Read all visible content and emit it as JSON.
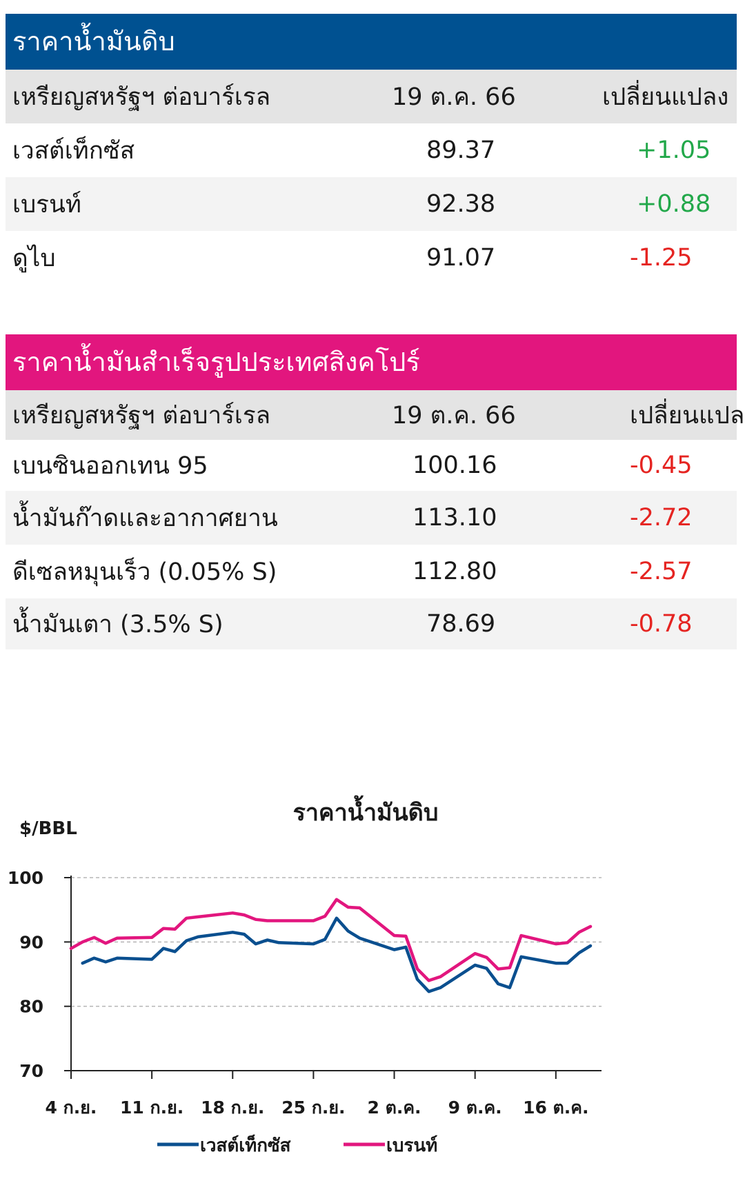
{
  "crude_table": {
    "title": "ราคาน้ำมันดิบ",
    "header_color": "#005191",
    "col_name": "เหรียญสหรัฐฯ ต่อบาร์เรล",
    "col_date": "19 ต.ค. 66",
    "col_change": "เปลี่ยนแปลง",
    "rows": [
      {
        "name": "เวสต์เท็กซัส",
        "value": "89.37",
        "change": "+1.05",
        "dir": "pos"
      },
      {
        "name": "เบรนท์",
        "value": "92.38",
        "change": "+0.88",
        "dir": "pos"
      },
      {
        "name": "ดูไบ",
        "value": "91.07",
        "change": "-1.25",
        "dir": "neg"
      }
    ]
  },
  "refined_table": {
    "title": "ราคาน้ำมันสำเร็จรูปประเทศสิงคโปร์",
    "header_color": "#e2167e",
    "col_name": "เหรียญสหรัฐฯ ต่อบาร์เรล",
    "col_date": "19 ต.ค. 66",
    "col_change": "เปลี่ยนแปลง",
    "rows": [
      {
        "name": "เบนซินออกเทน 95",
        "value": "100.16",
        "change": "-0.45",
        "dir": "neg"
      },
      {
        "name": "น้ำมันก๊าดและอากาศยาน",
        "value": "113.10",
        "change": "-2.72",
        "dir": "neg"
      },
      {
        "name": "ดีเซลหมุนเร็ว (0.05% S)",
        "value": "112.80",
        "change": "-2.57",
        "dir": "neg"
      },
      {
        "name": "น้ำมันเตา (3.5% S)",
        "value": "78.69",
        "change": "-0.78",
        "dir": "neg"
      }
    ]
  },
  "chart_data": {
    "type": "line",
    "title": "ราคาน้ำมันดิบ",
    "ylabel": "$/BBL",
    "ylim": [
      70,
      100
    ],
    "yticks": [
      70,
      80,
      90,
      100
    ],
    "grid": true,
    "legend_position": "bottom",
    "x_tick_labels": [
      "4 ก.ย.",
      "11 ก.ย.",
      "18 ก.ย.",
      "25 ก.ย.",
      "2 ต.ค.",
      "9 ต.ค.",
      "16 ต.ค."
    ],
    "x": [
      "2023-09-04",
      "2023-09-05",
      "2023-09-06",
      "2023-09-07",
      "2023-09-08",
      "2023-09-11",
      "2023-09-12",
      "2023-09-13",
      "2023-09-14",
      "2023-09-15",
      "2023-09-18",
      "2023-09-19",
      "2023-09-20",
      "2023-09-21",
      "2023-09-22",
      "2023-09-25",
      "2023-09-26",
      "2023-09-27",
      "2023-09-28",
      "2023-09-29",
      "2023-10-02",
      "2023-10-03",
      "2023-10-04",
      "2023-10-05",
      "2023-10-06",
      "2023-10-09",
      "2023-10-10",
      "2023-10-11",
      "2023-10-12",
      "2023-10-13",
      "2023-10-16",
      "2023-10-17",
      "2023-10-18",
      "2023-10-19"
    ],
    "series": [
      {
        "name": "เวสต์เท็กซัส",
        "color": "#0a4f8f",
        "values": [
          null,
          86.7,
          87.5,
          86.9,
          87.5,
          87.3,
          89.0,
          88.5,
          90.2,
          90.8,
          91.5,
          91.2,
          89.7,
          90.3,
          89.9,
          89.7,
          90.4,
          93.7,
          91.7,
          90.6,
          88.8,
          89.2,
          84.2,
          82.3,
          82.9,
          86.4,
          85.9,
          83.5,
          82.9,
          87.7,
          86.7,
          86.7,
          88.3,
          89.4
        ]
      },
      {
        "name": "เบรนท์",
        "color": "#e2167e",
        "values": [
          89.0,
          90.0,
          90.7,
          89.8,
          90.6,
          90.7,
          92.1,
          92.0,
          93.7,
          93.9,
          94.5,
          94.2,
          93.5,
          93.3,
          93.3,
          93.3,
          94.0,
          96.6,
          95.4,
          95.3,
          91.0,
          90.9,
          85.8,
          84.0,
          84.6,
          88.2,
          87.6,
          85.8,
          86.0,
          91.0,
          89.7,
          89.9,
          91.5,
          92.4
        ]
      }
    ]
  }
}
